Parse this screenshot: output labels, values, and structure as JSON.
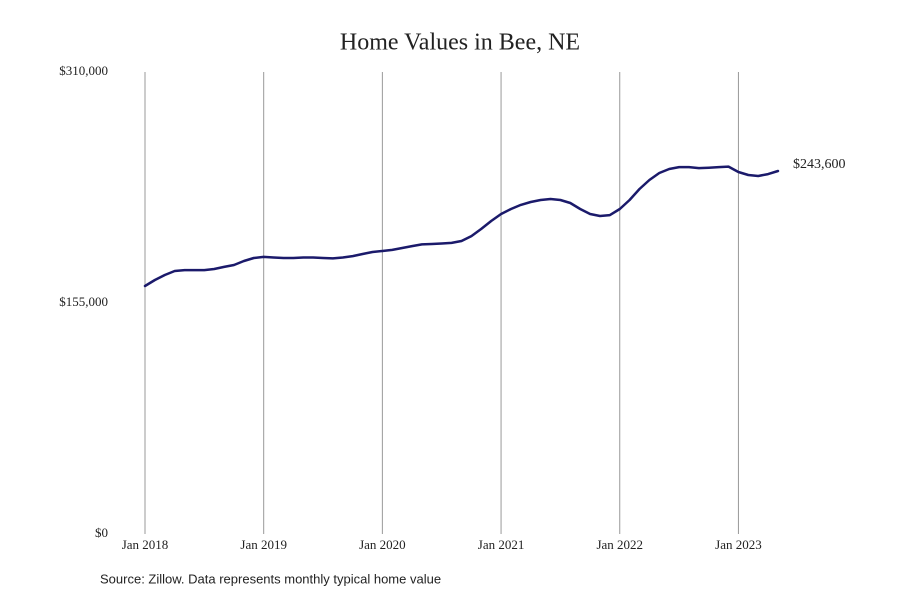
{
  "chart_data": {
    "type": "line",
    "title": "Home Values in Bee, NE",
    "source": "Source: Zillow. Data represents monthly typical home value",
    "x": [
      "2018-01",
      "2018-02",
      "2018-03",
      "2018-04",
      "2018-05",
      "2018-06",
      "2018-07",
      "2018-08",
      "2018-09",
      "2018-10",
      "2018-11",
      "2018-12",
      "2019-01",
      "2019-02",
      "2019-03",
      "2019-04",
      "2019-05",
      "2019-06",
      "2019-07",
      "2019-08",
      "2019-09",
      "2019-10",
      "2019-11",
      "2019-12",
      "2020-01",
      "2020-02",
      "2020-03",
      "2020-04",
      "2020-05",
      "2020-06",
      "2020-07",
      "2020-08",
      "2020-09",
      "2020-10",
      "2020-11",
      "2020-12",
      "2021-01",
      "2021-02",
      "2021-03",
      "2021-04",
      "2021-05",
      "2021-06",
      "2021-07",
      "2021-08",
      "2021-09",
      "2021-10",
      "2021-11",
      "2021-12",
      "2022-01",
      "2022-02",
      "2022-03",
      "2022-04",
      "2022-05",
      "2022-06",
      "2022-07",
      "2022-08",
      "2022-09",
      "2022-10",
      "2022-11",
      "2022-12",
      "2023-01",
      "2023-02",
      "2023-03",
      "2023-04",
      "2023-05"
    ],
    "series": [
      {
        "name": "Home value",
        "color": "#1b1a6b",
        "values": [
          166400,
          170400,
          173800,
          176500,
          177100,
          177100,
          177100,
          177800,
          179200,
          180500,
          183200,
          185200,
          185900,
          185500,
          185200,
          185200,
          185500,
          185500,
          185200,
          184900,
          185500,
          186500,
          187900,
          189200,
          189900,
          190600,
          191900,
          193200,
          194300,
          194600,
          194900,
          195300,
          196600,
          199900,
          204700,
          210000,
          214700,
          218100,
          220800,
          222800,
          224100,
          224800,
          224100,
          222100,
          218100,
          214700,
          213400,
          214000,
          218100,
          224100,
          231500,
          237500,
          242200,
          244900,
          246200,
          246200,
          245500,
          245800,
          246200,
          246500,
          242900,
          240900,
          240200,
          241500,
          243600
        ],
        "end_label": "$243,600"
      }
    ],
    "xlim": [
      "2018-01",
      "2023-05"
    ],
    "xticks": [
      {
        "value": "2018-01",
        "label": "Jan 2018"
      },
      {
        "value": "2019-01",
        "label": "Jan 2019"
      },
      {
        "value": "2020-01",
        "label": "Jan 2020"
      },
      {
        "value": "2021-01",
        "label": "Jan 2021"
      },
      {
        "value": "2022-01",
        "label": "Jan 2022"
      },
      {
        "value": "2023-01",
        "label": "Jan 2023"
      }
    ],
    "ylim": [
      0,
      310000
    ],
    "yticks": [
      {
        "value": 0,
        "label": "$0"
      },
      {
        "value": 155000,
        "label": "$155,000"
      },
      {
        "value": 310000,
        "label": "$310,000"
      }
    ],
    "grid": "x"
  }
}
